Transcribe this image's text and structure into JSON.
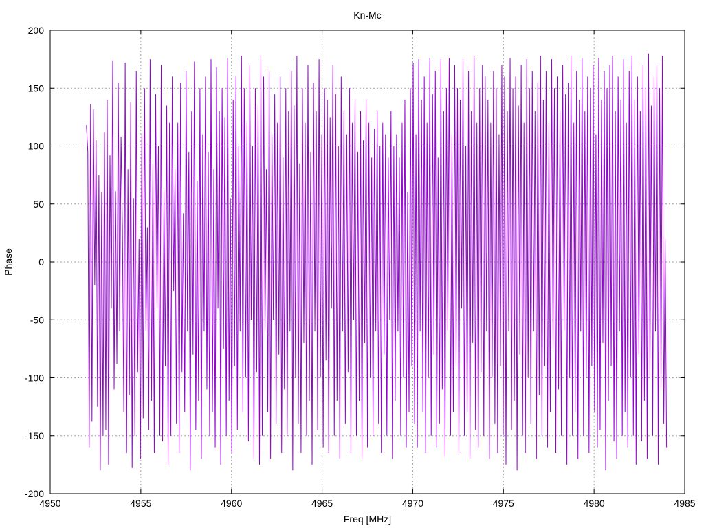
{
  "chart_data": {
    "type": "line",
    "title": "Kn-Mc",
    "xlabel": "Freq [MHz]",
    "ylabel": "Phase",
    "xlim": [
      4950,
      4985
    ],
    "ylim": [
      -200,
      200
    ],
    "xticks": [
      4950,
      4955,
      4960,
      4965,
      4970,
      4975,
      4980,
      4985
    ],
    "yticks": [
      -200,
      -150,
      -100,
      -50,
      0,
      50,
      100,
      150,
      200
    ],
    "xtick_labels": [
      "4950",
      "4955",
      "4960",
      "4965",
      "4970",
      "4975",
      "4980",
      "4985"
    ],
    "ytick_labels": [
      "-200",
      "-150",
      "-100",
      "-50",
      "0",
      "50",
      "100",
      "150",
      "200"
    ],
    "grid": true,
    "series": [
      {
        "color": "#9400d3",
        "x_start": 4952.0,
        "x_end": 4984.0,
        "y": [
          118,
          95,
          -160,
          136,
          -138,
          132,
          -20,
          105,
          -125,
          75,
          -180,
          60,
          -150,
          112,
          -145,
          140,
          -175,
          92,
          -40,
          174,
          -110,
          61,
          -88,
          155,
          -60,
          108,
          30,
          -130,
          172,
          -165,
          80,
          -115,
          138,
          -178,
          55,
          -150,
          165,
          -95,
          20,
          -170,
          110,
          -135,
          150,
          -60,
          30,
          -145,
          175,
          -120,
          85,
          -165,
          145,
          -40,
          100,
          -150,
          170,
          -155,
          62,
          -90,
          135,
          -175,
          120,
          -150,
          160,
          -25,
          80,
          -140,
          120,
          -165,
          155,
          -95,
          42,
          -130,
          165,
          -60,
          95,
          -180,
          130,
          -80,
          173,
          -145,
          70,
          -120,
          150,
          -170,
          110,
          -60,
          160,
          -110,
          95,
          -150,
          175,
          -130,
          80,
          -160,
          168,
          -40,
          130,
          -175,
          150,
          -75,
          125,
          -150,
          176,
          -120,
          55,
          -165,
          140,
          -90,
          160,
          -145,
          100,
          -60,
          178,
          -130,
          150,
          -100,
          120,
          -155,
          170,
          -50,
          100,
          -170,
          150,
          -95,
          135,
          -175,
          178,
          -150,
          160,
          -60,
          80,
          -130,
          165,
          -170,
          110,
          -50,
          145,
          -140,
          120,
          -80,
          160,
          -165,
          90,
          -110,
          150,
          -150,
          130,
          -60,
          165,
          -180,
          135,
          -100,
          178,
          -140,
          85,
          -165,
          150,
          -70,
          120,
          -150,
          170,
          -120,
          95,
          -175,
          155,
          -60,
          130,
          -145,
          175,
          -100,
          110,
          -160,
          150,
          -85,
          140,
          -165,
          125,
          -40,
          170,
          -150,
          145,
          -120,
          100,
          -170,
          160,
          -60,
          130,
          -140,
          110,
          -95,
          150,
          -165,
          120,
          -50,
          140,
          -150,
          95,
          -120,
          130,
          -170,
          105,
          -70,
          140,
          -160,
          120,
          -100,
          90,
          -150,
          115,
          -60,
          130,
          -140,
          100,
          -165,
          120,
          -80,
          110,
          -150,
          90,
          -50,
          130,
          -170,
          100,
          -120,
          110,
          -60,
          90,
          -150,
          120,
          -100,
          140,
          -160,
          60,
          -130,
          150,
          -90,
          172,
          -140,
          110,
          -160,
          175,
          -60,
          140,
          -130,
          160,
          -165,
          120,
          -100,
          176,
          -150,
          145,
          -80,
          165,
          -160,
          90,
          -140,
          175,
          -110,
          130,
          -168,
          150,
          -60,
          176,
          -150,
          110,
          -130,
          170,
          -90,
          150,
          -165,
          140,
          -40,
          175,
          -150,
          100,
          -130,
          165,
          -170,
          130,
          -70,
          178,
          -145,
          120,
          -160,
          150,
          -95,
          170,
          -150,
          160,
          -60,
          140,
          -170,
          120,
          -100,
          165,
          -140,
          150,
          -165,
          110,
          -90,
          170,
          -150,
          160,
          -175,
          130,
          -60,
          176,
          -145,
          150,
          -120,
          160,
          -180,
          135,
          -80,
          170,
          -150,
          120,
          -165,
          175,
          -100,
          150,
          -140,
          165,
          -60,
          130,
          -170,
          155,
          -115,
          178,
          -150,
          140,
          -90,
          165,
          -160,
          120,
          -130,
          175,
          -75,
          150,
          -165,
          160,
          -110,
          130,
          -150,
          170,
          -60,
          145,
          -175,
          155,
          -100,
          178,
          -150,
          120,
          -130,
          165,
          -170,
          140,
          -60,
          176,
          -150,
          130,
          -100,
          160,
          -165,
          150,
          -90,
          170,
          -130,
          110,
          -160,
          176,
          -145,
          140,
          -70,
          165,
          -180,
          150,
          -120,
          170,
          -90,
          178,
          -155,
          130,
          -170,
          160,
          -60,
          140,
          -150,
          175,
          -130,
          120,
          -160,
          165,
          -100,
          178,
          -150,
          140,
          -175,
          160,
          -80,
          130,
          -155,
          170,
          -120,
          150,
          -170,
          180,
          -100,
          135,
          -150,
          160,
          -60,
          170,
          -175,
          150,
          -110,
          178,
          -140,
          20,
          -160
        ]
      }
    ]
  }
}
